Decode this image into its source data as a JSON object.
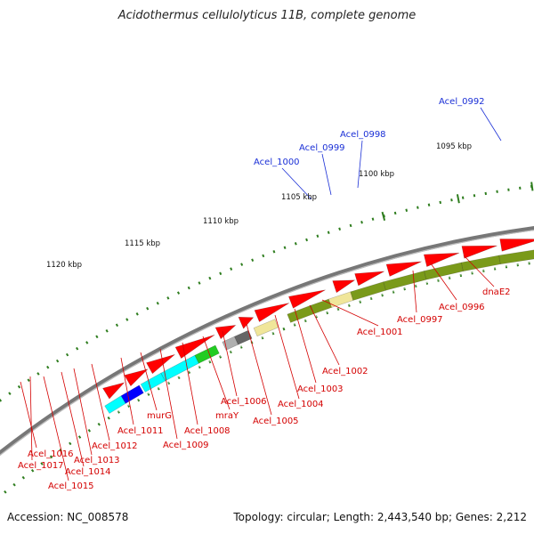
{
  "title": "Acidothermus cellulolyticus 11B, complete genome",
  "footer": {
    "accession": "Accession: NC_008578",
    "topology": "Topology: circular; Length: 2,443,540 bp; Genes: 2,212"
  },
  "ticks": [
    "1095 kbp",
    "1100 kbp",
    "1105 kbp",
    "1110 kbp",
    "1115 kbp",
    "1120 kbp"
  ],
  "labels_top": [
    "Acel_0992",
    "Acel_0998",
    "Acel_0999",
    "Acel_1000"
  ],
  "labels_bottom": [
    "dnaE2",
    "Acel_0996",
    "Acel_0997",
    "Acel_1001",
    "Acel_1002",
    "Acel_1003",
    "Acel_1004",
    "Acel_1005",
    "Acel_1006",
    "mraY",
    "Acel_1008",
    "Acel_1009",
    "murG",
    "Acel_1011",
    "Acel_1012",
    "Acel_1013",
    "Acel_1014",
    "Acel_1015",
    "Acel_1016",
    "Acel_1017"
  ],
  "colors": {
    "backbone": "#777777",
    "tick_dots": "#2e7d1e",
    "label_blue": "#1a2fd6",
    "label_red": "#d40000",
    "gene_red": "#ff0000",
    "gene_blue": "#0000ff",
    "gene_steel": "#4a7fb0",
    "gene_gray": "#b0b0b0",
    "gene_darkgray": "#666666",
    "gene_olive": "#7a9a1a",
    "gene_khaki": "#f0e69a",
    "gene_pink": "#ff2299",
    "gene_cyan": "#00ffff",
    "gene_green": "#22cc22"
  }
}
